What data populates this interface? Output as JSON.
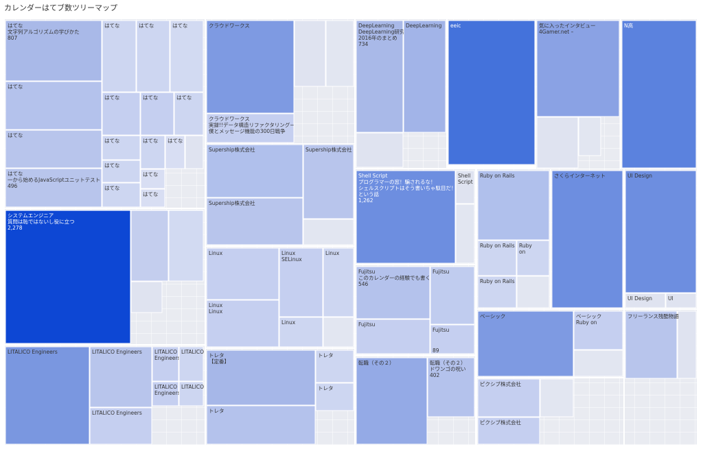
{
  "title": "カレンダーはてブ数ツリーマップ",
  "tiles": [
    {
      "lines": [
        "はてな",
        "文字列アルゴリズムの学びかた",
        "807"
      ]
    },
    {
      "lines": [
        "はてな"
      ]
    },
    {
      "lines": [
        "はてな"
      ]
    },
    {
      "lines": [
        "はてな",
        "一から始めるJavaScriptユニットテスト",
        "496"
      ]
    },
    {
      "lines": [
        "はてな"
      ]
    },
    {
      "lines": [
        "はてな"
      ]
    },
    {
      "lines": [
        "はてな"
      ]
    },
    {
      "lines": [
        "はてな"
      ]
    },
    {
      "lines": [
        "はてな"
      ]
    },
    {
      "lines": [
        "はてな"
      ]
    },
    {
      "lines": [
        "はてな"
      ]
    },
    {
      "lines": [
        "はてな"
      ]
    },
    {
      "lines": [
        "はてな"
      ]
    },
    {
      "lines": [
        "はてな"
      ]
    },
    {
      "lines": [
        "はてな"
      ]
    },
    {
      "lines": [
        "はてな"
      ]
    },
    {
      "lines": [
        "はてな"
      ]
    },
    {
      "lines": [
        "システムエンジニア",
        "質問は恥ではないし役に立つ",
        "2,278"
      ]
    },
    {
      "lines": [
        "LITALICO Engineers"
      ]
    },
    {
      "lines": [
        "LITALICO Engineers"
      ]
    },
    {
      "lines": [
        "LITALICO",
        "Engineers"
      ]
    },
    {
      "lines": [
        "LITALICO"
      ]
    },
    {
      "lines": [
        "LITALICO",
        "Engineers"
      ]
    },
    {
      "lines": [
        "LITALICO"
      ]
    },
    {
      "lines": [
        "LITALICO Engineers"
      ]
    },
    {
      "lines": [
        "クラウドワークス"
      ]
    },
    {
      "lines": [
        "クラウドワークス",
        "実録!!データ構造リファクタリング−",
        "僕とメッセージ機能の300日戦争"
      ]
    },
    {
      "lines": [
        "Supership株式会社"
      ]
    },
    {
      "lines": [
        "Supership株式会社"
      ]
    },
    {
      "lines": [
        "Supership株式会社"
      ]
    },
    {
      "lines": [
        "Linux"
      ]
    },
    {
      "lines": [
        "Linux",
        "Linux"
      ]
    },
    {
      "lines": [
        "Linux",
        "SELinux"
      ]
    },
    {
      "lines": [
        "Linux"
      ]
    },
    {
      "lines": [
        "Linux"
      ]
    },
    {
      "lines": [
        "トレタ",
        "【定番】"
      ]
    },
    {
      "lines": [
        "トレタ"
      ]
    },
    {
      "lines": [
        "トレタ"
      ]
    },
    {
      "lines": [
        "トレタ"
      ]
    },
    {
      "lines": [
        "DeepLearning",
        "DeepLearning研究",
        "2016年のまとめ",
        "734"
      ]
    },
    {
      "lines": [
        "DeepLearning"
      ]
    },
    {
      "lines": [
        "eeic"
      ]
    },
    {
      "lines": [
        "気に入ったインタビュー",
        "4Gamer.net –"
      ]
    },
    {
      "lines": [
        "N高"
      ]
    },
    {
      "lines": [
        "Shell Script",
        "プログラマーの窓！騙されるな！",
        "シェルスクリプトはそう書いちゃ駄目だ！！",
        "という話",
        "1,262"
      ]
    },
    {
      "lines": [
        "Shell",
        "Script"
      ]
    },
    {
      "lines": [
        "Fujitsu",
        "このカレンダーの経験でも書くか",
        "546"
      ]
    },
    {
      "lines": [
        "Fujitsu"
      ]
    },
    {
      "lines": [
        "Fujitsu"
      ]
    },
    {
      "lines": [
        "Fujitsu",
        "89"
      ]
    },
    {
      "lines": [
        "転職（その２）"
      ]
    },
    {
      "lines": [
        "転職（その２）",
        "ドワンゴの呪い",
        "402"
      ]
    },
    {
      "lines": [
        "Ruby on Rails"
      ]
    },
    {
      "lines": [
        "Ruby on Rails"
      ]
    },
    {
      "lines": [
        "Ruby",
        "on"
      ]
    },
    {
      "lines": [
        "Ruby on Rails"
      ]
    },
    {
      "lines": [
        "さくらインターネット"
      ]
    },
    {
      "lines": [
        "UI Design"
      ]
    },
    {
      "lines": [
        "UI Design"
      ]
    },
    {
      "lines": [
        "UI"
      ]
    },
    {
      "lines": [
        "ベーシック"
      ]
    },
    {
      "lines": [
        "ベーシック",
        "Ruby on"
      ]
    },
    {
      "lines": [
        "フリーランス残酷物語"
      ]
    },
    {
      "lines": [
        "ピクシブ株式会社"
      ]
    },
    {
      "lines": [
        "ピクシブ株式会社"
      ]
    }
  ]
}
